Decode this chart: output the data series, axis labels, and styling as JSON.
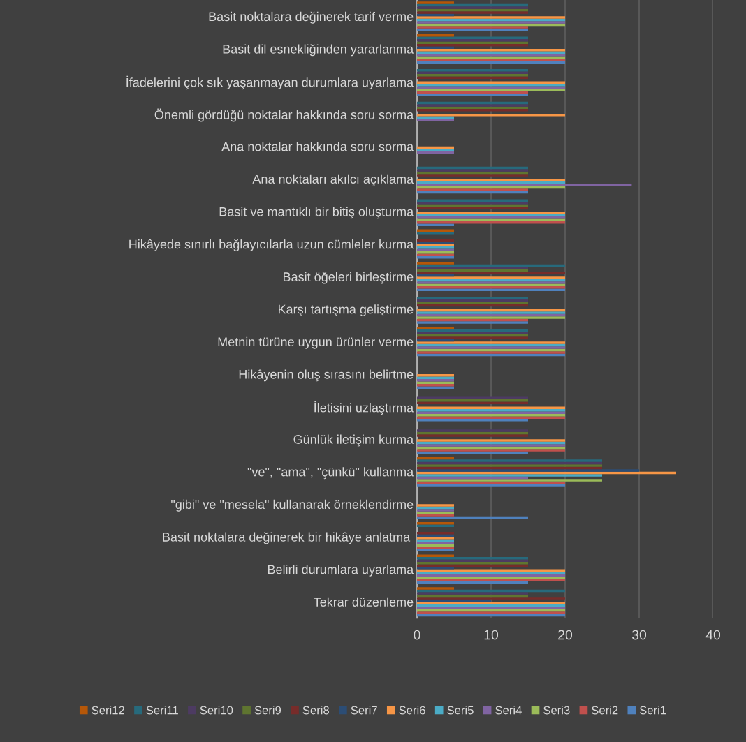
{
  "chart_data": {
    "type": "bar",
    "orientation": "horizontal",
    "categories": [
      "Basit noktalara değinerek tarif verme",
      "Basit dil esnekliğinden yararlanma",
      "İfadelerini çok sık yaşanmayan durumlara uyarlama",
      "Önemli gördüğü noktalar hakkında soru sorma",
      "Ana noktalar hakkında soru sorma",
      "Ana noktaları akılcı açıklama",
      "Basit ve mantıklı bir bitiş oluşturma",
      "Hikâyede sınırlı bağlayıcılarla uzun cümleler kurma",
      "Basit öğeleri birleştirme",
      "Karşı tartışma geliştirme",
      "Metnin türüne uygun ürünler verme",
      "Hikâyenin oluş sırasını belirtme",
      "İletisini uzlaştırma",
      "Günlük iletişim kurma",
      "\"ve\", \"ama\", \"çünkü\" kullanma",
      "\"gibi\" ve \"mesela\" kullanarak örneklendirme",
      "Basit noktalara değinerek bir hikâye anlatma ",
      "Belirli durumlara uyarlama",
      "Tekrar düzenleme"
    ],
    "series": [
      {
        "name": "Seri1",
        "color": "#4f81bd",
        "values": [
          15,
          20,
          15,
          0,
          0,
          15,
          5,
          5,
          20,
          15,
          20,
          5,
          15,
          15,
          20,
          15,
          5,
          15,
          20
        ]
      },
      {
        "name": "Seri2",
        "color": "#c0504d",
        "values": [
          15,
          20,
          15,
          0,
          0,
          15,
          20,
          5,
          20,
          15,
          20,
          5,
          20,
          20,
          20,
          5,
          5,
          20,
          20
        ]
      },
      {
        "name": "Seri3",
        "color": "#9bbb59",
        "values": [
          20,
          20,
          20,
          0,
          0,
          20,
          20,
          5,
          20,
          20,
          20,
          5,
          20,
          20,
          25,
          5,
          5,
          20,
          20
        ]
      },
      {
        "name": "Seri4",
        "color": "#8064a2",
        "values": [
          20,
          20,
          20,
          5,
          5,
          29,
          20,
          5,
          20,
          20,
          20,
          5,
          20,
          20,
          15,
          5,
          5,
          20,
          20
        ]
      },
      {
        "name": "Seri5",
        "color": "#4bacc6",
        "values": [
          20,
          20,
          20,
          5,
          5,
          20,
          20,
          5,
          20,
          20,
          20,
          5,
          20,
          20,
          25,
          5,
          5,
          20,
          20
        ]
      },
      {
        "name": "Seri6",
        "color": "#f79646",
        "values": [
          20,
          20,
          20,
          20,
          5,
          20,
          20,
          5,
          20,
          20,
          20,
          5,
          20,
          20,
          35,
          5,
          5,
          20,
          20
        ]
      },
      {
        "name": "Seri7",
        "color": "#2c4d75",
        "values": [
          5,
          5,
          0,
          0,
          0,
          0,
          0,
          5,
          5,
          0,
          5,
          0,
          0,
          0,
          30,
          0,
          5,
          5,
          10
        ]
      },
      {
        "name": "Seri8",
        "color": "#772c2a",
        "values": [
          15,
          15,
          15,
          15,
          0,
          15,
          15,
          5,
          20,
          15,
          15,
          0,
          15,
          15,
          25,
          0,
          5,
          15,
          20
        ]
      },
      {
        "name": "Seri9",
        "color": "#5f7530",
        "values": [
          15,
          15,
          15,
          15,
          0,
          15,
          15,
          0,
          15,
          15,
          15,
          0,
          15,
          15,
          25,
          0,
          0,
          15,
          15
        ]
      },
      {
        "name": "Seri10",
        "color": "#4d3b62",
        "values": [
          15,
          15,
          15,
          15,
          0,
          15,
          15,
          0,
          15,
          15,
          15,
          0,
          15,
          15,
          25,
          0,
          0,
          15,
          15
        ]
      },
      {
        "name": "Seri11",
        "color": "#276a7c",
        "values": [
          15,
          15,
          15,
          15,
          0,
          15,
          15,
          5,
          20,
          15,
          15,
          0,
          0,
          0,
          25,
          0,
          5,
          15,
          20
        ]
      },
      {
        "name": "Seri12",
        "color": "#b65708",
        "values": [
          5,
          5,
          0,
          0,
          0,
          0,
          0,
          5,
          5,
          0,
          5,
          0,
          0,
          0,
          5,
          0,
          5,
          5,
          5
        ]
      }
    ],
    "xlim": [
      0,
      40
    ],
    "xticks": [
      0,
      10,
      20,
      30,
      40
    ],
    "grid": "x",
    "legend": "bottom"
  }
}
